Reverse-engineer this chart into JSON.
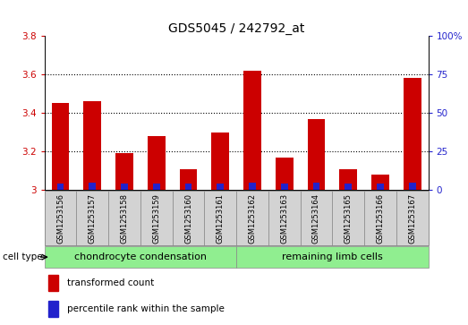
{
  "title": "GDS5045 / 242792_at",
  "samples": [
    "GSM1253156",
    "GSM1253157",
    "GSM1253158",
    "GSM1253159",
    "GSM1253160",
    "GSM1253161",
    "GSM1253162",
    "GSM1253163",
    "GSM1253164",
    "GSM1253165",
    "GSM1253166",
    "GSM1253167"
  ],
  "transformed_count": [
    3.45,
    3.46,
    3.19,
    3.28,
    3.11,
    3.3,
    3.62,
    3.17,
    3.37,
    3.11,
    3.08,
    3.58
  ],
  "percentile_rank": [
    4,
    5,
    4,
    4,
    4,
    4,
    5,
    4,
    5,
    4,
    4,
    5
  ],
  "ylim_left": [
    3.0,
    3.8
  ],
  "ylim_right": [
    0,
    100
  ],
  "yticks_left": [
    3.0,
    3.2,
    3.4,
    3.6,
    3.8
  ],
  "yticks_right": [
    0,
    25,
    50,
    75,
    100
  ],
  "ytick_labels_left": [
    "3",
    "3.2",
    "3.4",
    "3.6",
    "3.8"
  ],
  "ytick_labels_right": [
    "0",
    "25",
    "50",
    "75",
    "100%"
  ],
  "bar_width": 0.55,
  "red_color": "#cc0000",
  "blue_color": "#2222cc",
  "base_value": 3.0,
  "group1_label": "chondrocyte condensation",
  "group2_label": "remaining limb cells",
  "group1_indices": [
    0,
    1,
    2,
    3,
    4,
    5
  ],
  "group2_indices": [
    6,
    7,
    8,
    9,
    10,
    11
  ],
  "cell_type_label": "cell type",
  "legend_red": "transformed count",
  "legend_blue": "percentile rank within the sample",
  "bg_plot": "#ffffff",
  "bg_xtick": "#d3d3d3",
  "bg_group": "#90ee90",
  "title_fontsize": 10,
  "tick_fontsize": 7.5,
  "sample_fontsize": 6.0,
  "group_fontsize": 8,
  "legend_fontsize": 7.5,
  "percentile_bar_width": 0.22
}
